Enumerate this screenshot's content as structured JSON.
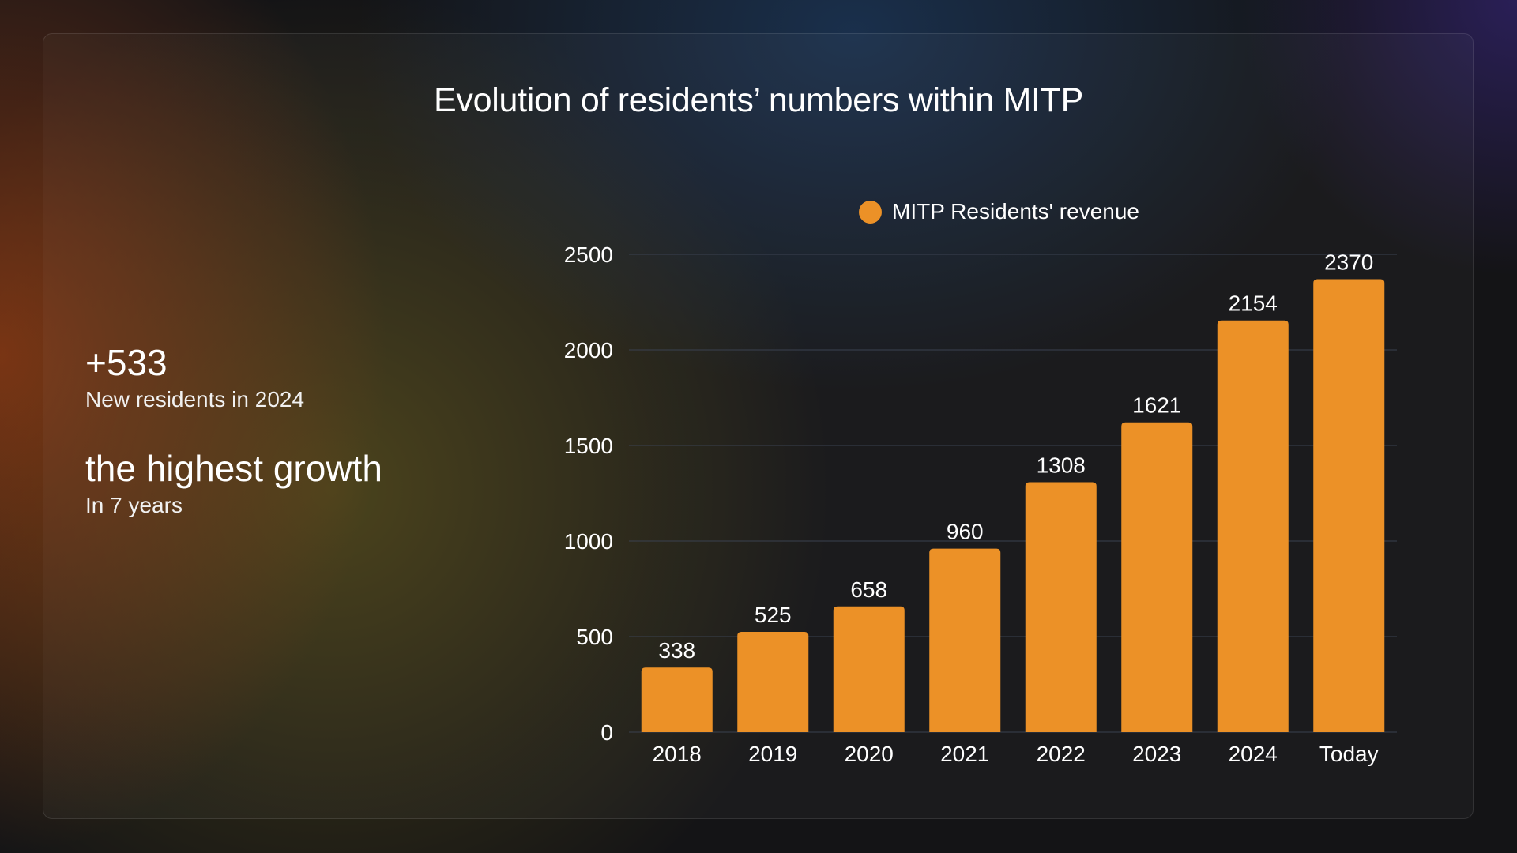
{
  "title": "Evolution of residents’ numbers within MITP",
  "stats": [
    {
      "big": "+533",
      "small": "New residents in 2024"
    },
    {
      "big": "the highest growth",
      "small": "In 7 years"
    }
  ],
  "legend_label": "MITP Residents' revenue",
  "colors": {
    "bar": "#ec9127",
    "grid": "#3a4150",
    "text": "#ffffff"
  },
  "chart_data": {
    "type": "bar",
    "categories": [
      "2018",
      "2019",
      "2020",
      "2021",
      "2022",
      "2023",
      "2024",
      "Today"
    ],
    "series": [
      {
        "name": "MITP Residents' revenue",
        "values": [
          338,
          525,
          658,
          960,
          1308,
          1621,
          2154,
          2370
        ]
      }
    ],
    "yticks": [
      0,
      500,
      1000,
      1500,
      2000,
      2500
    ],
    "ylim": [
      0,
      2500
    ],
    "grid": true,
    "legend": "top-center",
    "data_labels": true
  }
}
